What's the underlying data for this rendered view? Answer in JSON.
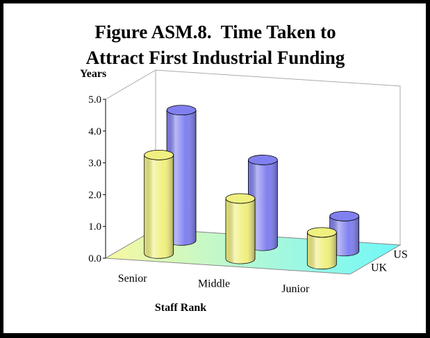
{
  "chart_data": {
    "type": "bar3d",
    "title": [
      "Figure ASM.8.  Time Taken to",
      "Attract First Industrial Funding"
    ],
    "y_label": "Years",
    "x_label": "Staff Rank",
    "categories": [
      "Senior",
      "Middle",
      "Junior"
    ],
    "series": [
      {
        "name": "UK",
        "color": "#f0f080",
        "values": [
          3.1,
          1.9,
          1.0
        ]
      },
      {
        "name": "US",
        "color": "#8080f0",
        "values": [
          4.1,
          2.7,
          1.1
        ]
      }
    ],
    "ylim": [
      0,
      5
    ],
    "yticks": [
      {
        "value": 0,
        "label": "0.0"
      },
      {
        "value": 1,
        "label": "1.0"
      },
      {
        "value": 2,
        "label": "2.0"
      },
      {
        "value": 3,
        "label": "3.0"
      },
      {
        "value": 4,
        "label": "4.0"
      },
      {
        "value": 5,
        "label": "5.0"
      }
    ]
  }
}
